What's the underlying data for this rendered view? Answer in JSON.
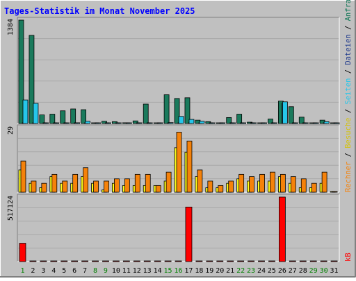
{
  "chart_data": {
    "type": "bar",
    "title": "Tages-Statistik im Monat November 2025",
    "categories": [
      "1",
      "2",
      "3",
      "4",
      "5",
      "6",
      "7",
      "8",
      "9",
      "10",
      "11",
      "12",
      "13",
      "14",
      "15",
      "16",
      "17",
      "18",
      "19",
      "20",
      "21",
      "22",
      "23",
      "24",
      "25",
      "26",
      "27",
      "28",
      "29",
      "30",
      "31"
    ],
    "weekend_days": [
      "1",
      "8",
      "9",
      "15",
      "16",
      "22",
      "23",
      "29",
      "30"
    ],
    "grid": true,
    "legend_placement": "right, vertical",
    "panels": [
      {
        "id": "top",
        "axis_max_label": "1384",
        "ylim": [
          0,
          1384
        ],
        "series": [
          {
            "name": "Anfragen",
            "color": "#1a7a5c",
            "values": [
              1384,
              1180,
              115,
              125,
              170,
              195,
              185,
              5,
              30,
              25,
              10,
              35,
              260,
              5,
              385,
              335,
              345,
              45,
              25,
              5,
              80,
              125,
              18,
              5,
              60,
              300,
              225,
              85,
              5,
              45,
              0
            ]
          },
          {
            "name": "Dateien",
            "color": "#1f3a8c",
            "values": [
              0,
              0,
              0,
              0,
              0,
              0,
              0,
              0,
              0,
              0,
              0,
              0,
              0,
              0,
              0,
              0,
              0,
              0,
              0,
              0,
              0,
              0,
              0,
              0,
              0,
              270,
              0,
              0,
              0,
              0,
              0
            ]
          },
          {
            "name": "Seiten",
            "color": "#26c6ea",
            "values": [
              315,
              270,
              5,
              8,
              5,
              10,
              30,
              3,
              3,
              3,
              2,
              3,
              5,
              2,
              12,
              95,
              55,
              30,
              8,
              2,
              5,
              5,
              3,
              2,
              5,
              290,
              8,
              4,
              2,
              25,
              0
            ]
          }
        ]
      },
      {
        "id": "middle",
        "axis_max_label": "29",
        "ylim": [
          0,
          29
        ],
        "series": [
          {
            "name": "Besuche",
            "color": "#ffff1a",
            "values": [
              10,
              4,
              2,
              7,
              4,
              4,
              7,
              4,
              1,
              4,
              3,
              3,
              3,
              3,
              5,
              20,
              18,
              7,
              2,
              2,
              4,
              6,
              5,
              5,
              5,
              7,
              4,
              2,
              2,
              4,
              0
            ]
          },
          {
            "name": "Rechner",
            "color": "#f5820a",
            "values": [
              14,
              5,
              4,
              8,
              5,
              8,
              11,
              5,
              5,
              6,
              6,
              8,
              8,
              3,
              9,
              27,
              23,
              10,
              5,
              3,
              5,
              8,
              7,
              8,
              9,
              8,
              7,
              6,
              4,
              9,
              0
            ]
          }
        ]
      },
      {
        "id": "bottom",
        "axis_max_label": "517124",
        "ylim": [
          0,
          517124
        ],
        "series": [
          {
            "name": "kB",
            "color": "#ff0000",
            "values": [
              147000,
              2000,
              1000,
              1000,
              1000,
              1000,
              1000,
              1000,
              1000,
              1000,
              1000,
              1000,
              1000,
              1000,
              1000,
              1000,
              437000,
              1000,
              1000,
              1000,
              1000,
              1000,
              1000,
              1000,
              1000,
              517124,
              1000,
              1000,
              1000,
              1000,
              1000
            ]
          }
        ]
      }
    ],
    "legend": [
      {
        "text": "Anfragen",
        "color": "#1a7a5c"
      },
      {
        "text": "/",
        "color": "#000000"
      },
      {
        "text": "Dateien",
        "color": "#1f3a8c"
      },
      {
        "text": "/",
        "color": "#000000"
      },
      {
        "text": "Seiten",
        "color": "#26c6ea"
      },
      {
        "text": "/",
        "color": "#000000"
      },
      {
        "text": "Besuche",
        "color": "#d4c20a"
      },
      {
        "text": "/",
        "color": "#000000"
      },
      {
        "text": "Rechner",
        "color": "#f5820a"
      }
    ],
    "legend_bottom": {
      "text": "kB",
      "color": "#ff0000"
    }
  },
  "colors": {
    "background": "#c0c0c0",
    "plot_background": "#c0c0c0",
    "title": "#0000ff",
    "weekday_label": "#000000",
    "weekend_label": "#008000"
  }
}
